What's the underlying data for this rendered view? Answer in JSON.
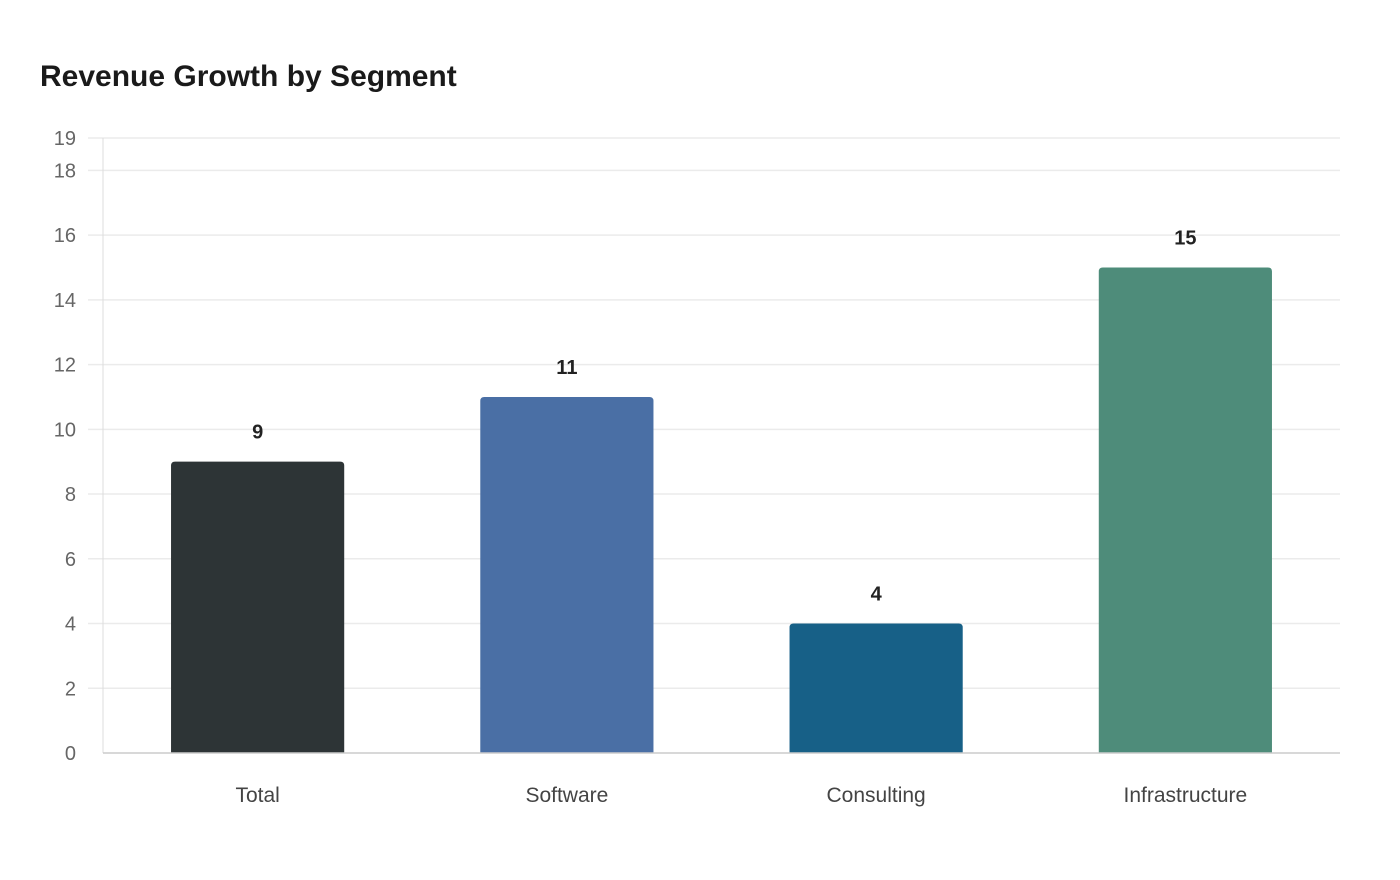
{
  "chart_data": {
    "type": "bar",
    "title": "Revenue Growth by Segment",
    "xlabel": "",
    "ylabel": "",
    "categories": [
      "Total",
      "Software",
      "Consulting",
      "Infrastructure"
    ],
    "values": [
      9,
      11,
      4,
      15
    ],
    "colors": [
      "#2d3436",
      "#4a6fa5",
      "#176087",
      "#4e8c7a"
    ],
    "ylim": [
      0,
      19
    ],
    "yticks": [
      0,
      2,
      4,
      6,
      8,
      10,
      12,
      14,
      16,
      18,
      19
    ],
    "grid": true,
    "legend": "none",
    "data_labels": true
  }
}
